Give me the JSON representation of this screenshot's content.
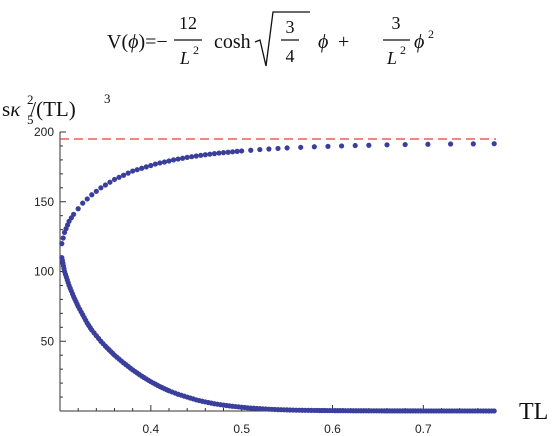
{
  "formula": {
    "lhs": "V(",
    "phi": "ϕ",
    "rhs_open": ")=−",
    "num1": "12",
    "den1_L": "L",
    "den1_exp": "2",
    "cosh": "cosh",
    "sqrt_num": "3",
    "sqrt_den": "4",
    "plus": "+",
    "num2": "3",
    "den2_L": "L",
    "den2_exp": "2",
    "phi2": "ϕ",
    "phi2_exp": "2"
  },
  "chart_data": {
    "type": "scatter",
    "title": "",
    "xlabel": "TL",
    "ylabel": "sκ₅²/(TL)³",
    "ylabel_parts": {
      "s": "s",
      "kappa": "κ",
      "kappa_sup": "2",
      "kappa_sub": "5",
      "rest": "/(TL)",
      "rest_sup": "3"
    },
    "xlim": [
      0.3,
      0.78
    ],
    "ylim": [
      0,
      200
    ],
    "x_ticks": [
      0.4,
      0.5,
      0.6,
      0.7
    ],
    "x_tick_labels": [
      "0.4",
      "0.5",
      "0.6",
      "0.7"
    ],
    "y_ticks": [
      50,
      100,
      150,
      200
    ],
    "y_tick_labels": [
      "50",
      "100",
      "150",
      "200"
    ],
    "reference_line": {
      "y": 195,
      "style": "dashed",
      "color": "#e0403a"
    },
    "series": [
      {
        "color": "#3b3f9c",
        "description_branch": "upper",
        "x": [
          0.302,
          0.305,
          0.31,
          0.315,
          0.32,
          0.325,
          0.33,
          0.335,
          0.34,
          0.345,
          0.35,
          0.355,
          0.36,
          0.365,
          0.37,
          0.375,
          0.38,
          0.385,
          0.39,
          0.395,
          0.4,
          0.405,
          0.41,
          0.415,
          0.42,
          0.425,
          0.43,
          0.435,
          0.44,
          0.445,
          0.45,
          0.455,
          0.46,
          0.465,
          0.47,
          0.475,
          0.48,
          0.485,
          0.49,
          0.495,
          0.5,
          0.51,
          0.52,
          0.53,
          0.54,
          0.55,
          0.565,
          0.58,
          0.595,
          0.61,
          0.625,
          0.64,
          0.66,
          0.68,
          0.705,
          0.73,
          0.755,
          0.778
        ],
        "y": [
          120,
          128,
          136,
          141,
          145,
          149,
          152,
          155,
          157.5,
          160,
          162,
          164,
          166,
          167.5,
          169,
          170.5,
          172,
          173,
          174,
          175,
          176,
          177,
          177.8,
          178.5,
          179.2,
          180,
          180.6,
          181.2,
          181.8,
          182.3,
          182.8,
          183.3,
          183.7,
          184.1,
          184.5,
          184.9,
          185.2,
          185.5,
          185.8,
          186.1,
          186.4,
          186.9,
          187.4,
          187.8,
          188.2,
          188.6,
          189,
          189.4,
          189.7,
          190,
          190.3,
          190.5,
          190.8,
          191,
          191.2,
          191.4,
          191.5,
          191.6
        ]
      },
      {
        "color": "#3b3f9c",
        "description_branch": "lower",
        "x": [
          0.302,
          0.305,
          0.31,
          0.315,
          0.32,
          0.325,
          0.33,
          0.335,
          0.34,
          0.345,
          0.35,
          0.36,
          0.37,
          0.38,
          0.39,
          0.4,
          0.41,
          0.42,
          0.43,
          0.44,
          0.45,
          0.46,
          0.47,
          0.48,
          0.49,
          0.5,
          0.51,
          0.52,
          0.53,
          0.54,
          0.55,
          0.56,
          0.57,
          0.58,
          0.6,
          0.62,
          0.64,
          0.66,
          0.68,
          0.7,
          0.72,
          0.74,
          0.76,
          0.778
        ],
        "y": [
          110,
          100,
          90,
          82,
          75,
          69,
          63,
          58,
          54,
          50,
          46.5,
          40,
          34.5,
          29.5,
          25,
          21,
          17.5,
          14.5,
          12,
          10,
          8,
          6.5,
          5.2,
          4.2,
          3.4,
          2.7,
          2.1,
          1.7,
          1.3,
          1.0,
          0.8,
          0.6,
          0.5,
          0.4,
          0.3,
          0.2,
          0.15,
          0.1,
          0.08,
          0.06,
          0.05,
          0.04,
          0.03,
          0.02
        ]
      }
    ]
  }
}
